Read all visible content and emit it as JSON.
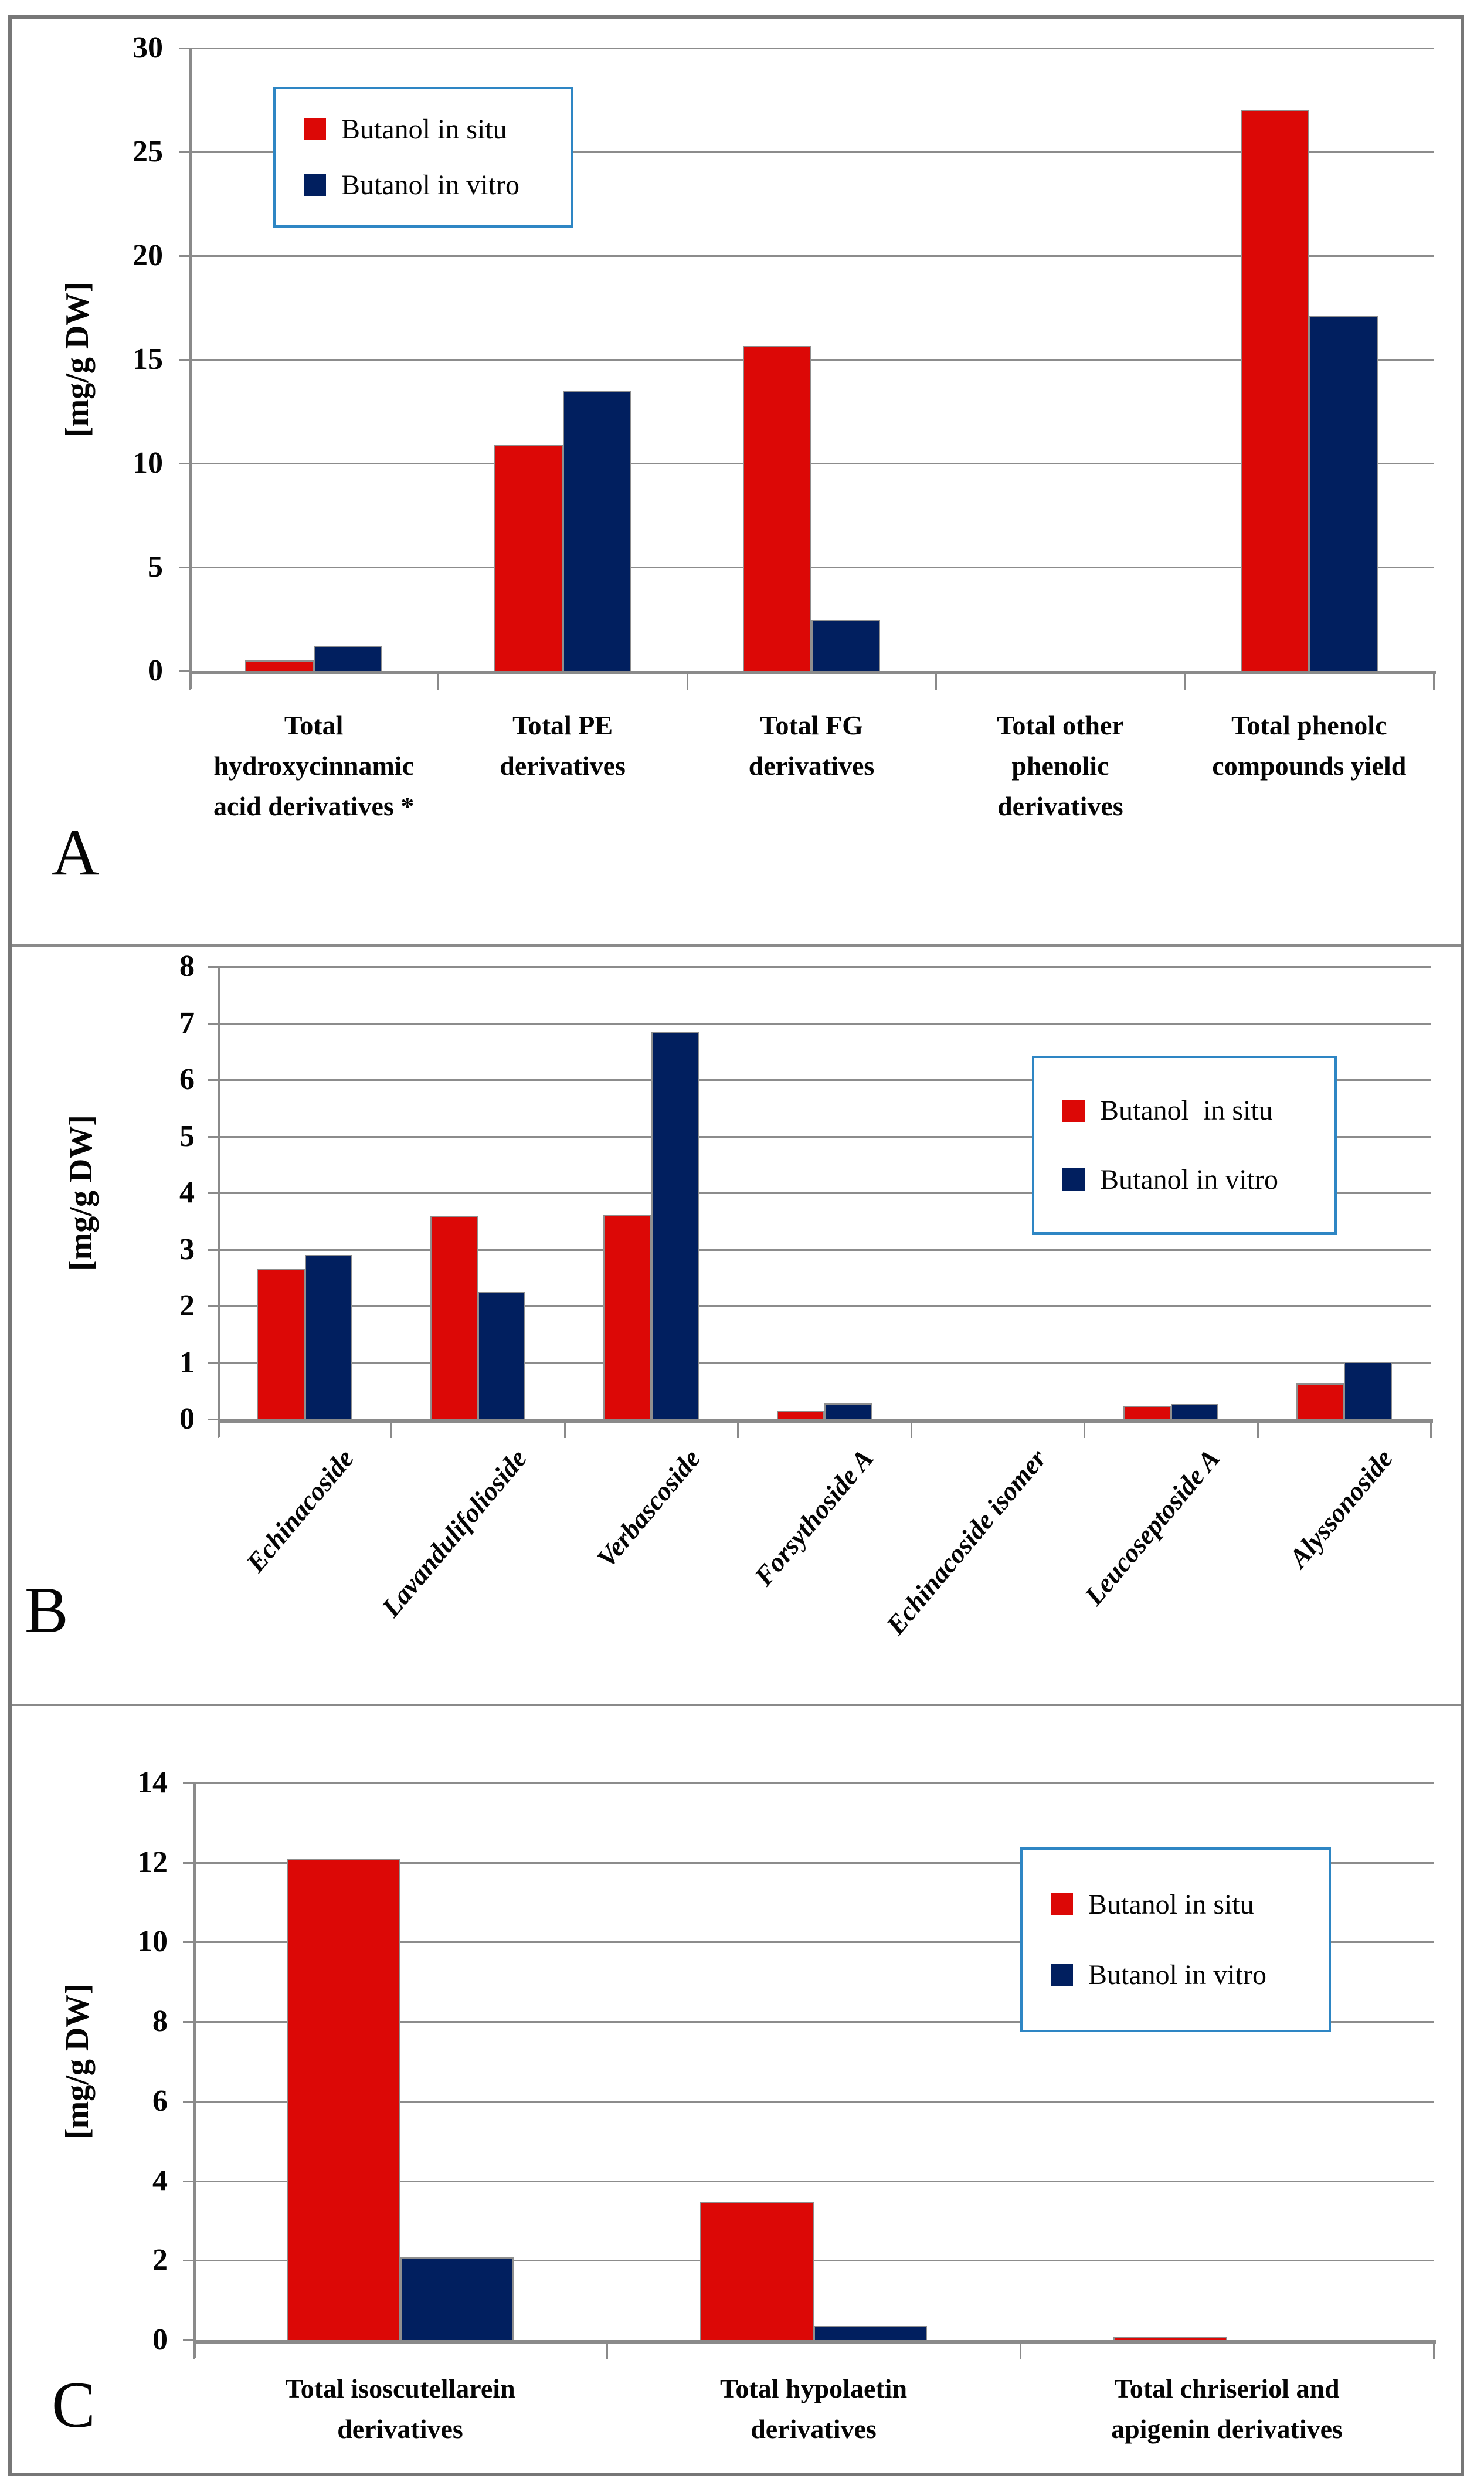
{
  "figure": {
    "description_labels": {
      "y_axis_unit": "[mg/g DW]"
    },
    "colors": {
      "butanol_in_situ": "#DC0806",
      "butanol_in_vitro": "#011F5F",
      "legend_border": "#2E86C4",
      "gridline": "#8C8C8C",
      "axis": "#8A8A8A"
    }
  },
  "chart_data": [
    {
      "id": "panel-A",
      "type": "bar",
      "panel_letter": "A",
      "ylabel": "[mg/g DW]",
      "ylim": [
        0,
        30
      ],
      "ystep": 5,
      "grid": true,
      "legend_position": "upper-left",
      "categories": [
        "Total\nhydroxycinnamic\nacid derivatives *",
        "Total PE\nderivatives",
        "Total FG\nderivatives",
        "Total other\nphenolic\nderivatives",
        "Total phenolc\ncompounds yield"
      ],
      "series": [
        {
          "name": "Butanol in situ",
          "color": "#DC0806",
          "values": [
            0.5,
            10.9,
            15.65,
            0,
            27.0
          ]
        },
        {
          "name": "Butanol in vitro",
          "color": "#011F5F",
          "values": [
            1.2,
            13.5,
            2.45,
            0,
            17.1
          ]
        }
      ]
    },
    {
      "id": "panel-B",
      "type": "bar",
      "panel_letter": "B",
      "ylabel": "[mg/g DW]",
      "ylim": [
        0,
        8
      ],
      "ystep": 1,
      "grid": true,
      "legend_position": "middle-right",
      "categories": [
        "Echinacoside",
        "Lavandulifolioside",
        "Verbascoside",
        "Forsythoside A",
        "Echinacoside isomer",
        "Leucoseptoside A",
        "Alyssonoside"
      ],
      "series": [
        {
          "name": "Butanol  in situ",
          "color": "#DC0806",
          "values": [
            2.65,
            3.6,
            3.62,
            0.14,
            0,
            0.24,
            0.63
          ]
        },
        {
          "name": "Butanol in vitro",
          "color": "#011F5F",
          "values": [
            2.9,
            2.25,
            6.85,
            0.28,
            0,
            0.27,
            1.02
          ]
        }
      ]
    },
    {
      "id": "panel-C",
      "type": "bar",
      "panel_letter": "C",
      "ylabel": "[mg/g DW]",
      "ylim": [
        0,
        14
      ],
      "ystep": 2,
      "grid": true,
      "legend_position": "upper-right",
      "categories": [
        "Total isoscutellarein\nderivatives",
        "Total hypolaetin\nderivatives",
        "Total chriseriol and\napigenin derivatives"
      ],
      "series": [
        {
          "name": "Butanol in situ",
          "color": "#DC0806",
          "values": [
            12.1,
            3.48,
            0.07
          ]
        },
        {
          "name": "Butanol in vitro",
          "color": "#011F5F",
          "values": [
            2.08,
            0.36,
            0
          ]
        }
      ]
    }
  ]
}
